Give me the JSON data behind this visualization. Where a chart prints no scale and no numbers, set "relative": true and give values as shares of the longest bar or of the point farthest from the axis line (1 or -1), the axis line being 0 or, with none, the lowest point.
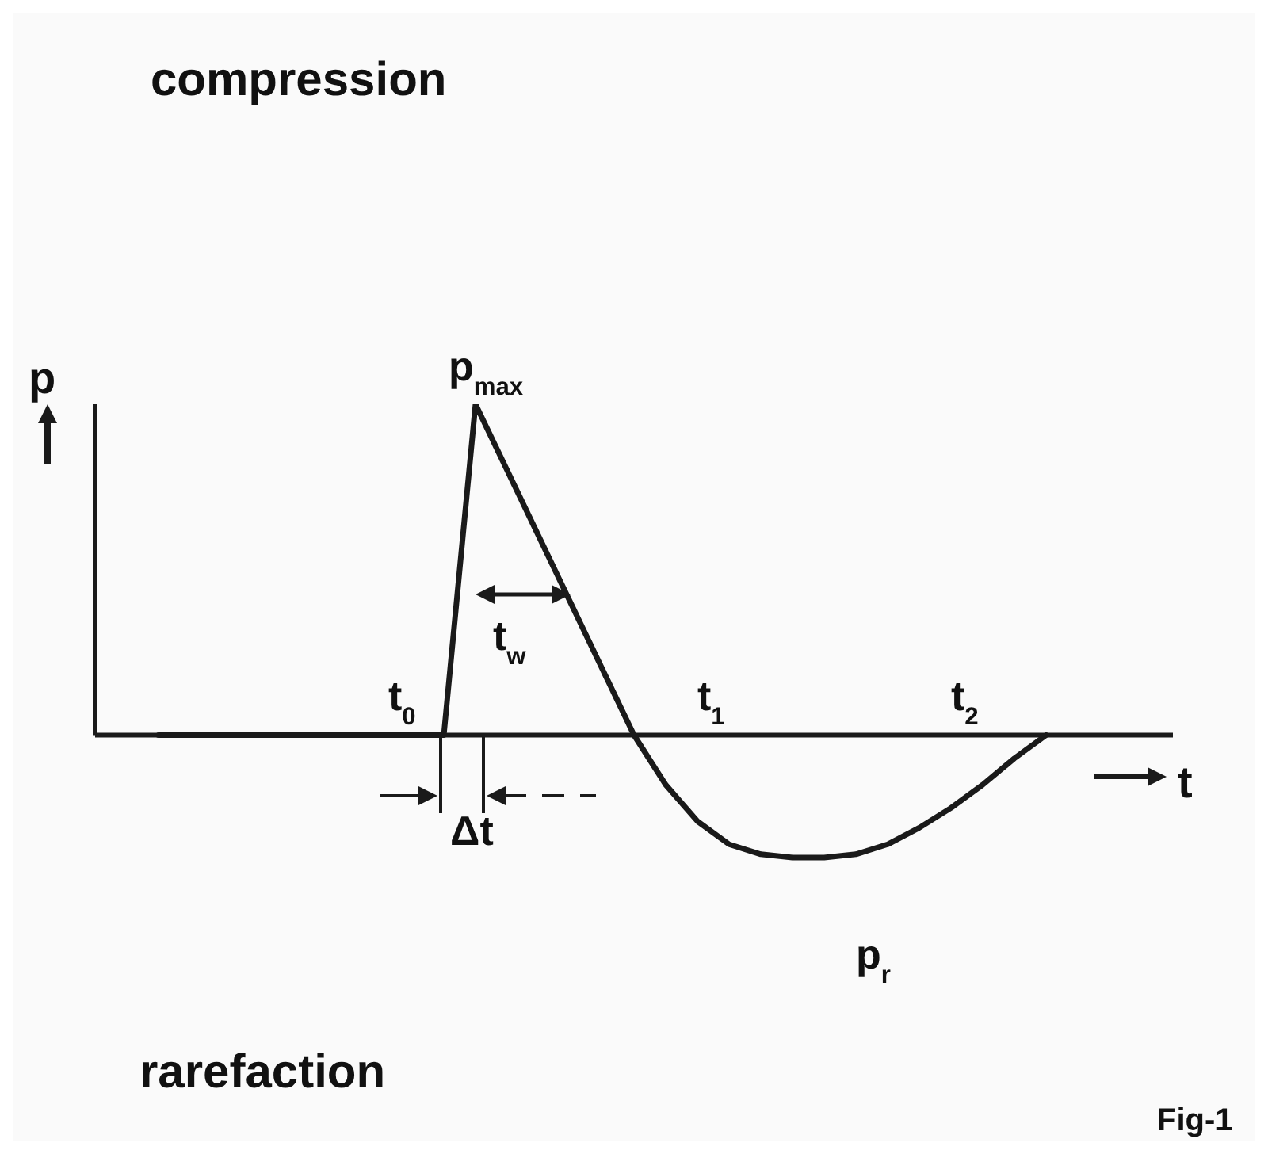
{
  "chart_data": {
    "type": "line",
    "relative": true,
    "xlabel": "t",
    "ylabel": "p",
    "marker": "none",
    "line_style": "solid",
    "categories": [
      null,
      null,
      null,
      null,
      null,
      null,
      null,
      null,
      null,
      null,
      null,
      null,
      null,
      null,
      null,
      null,
      null,
      null,
      null,
      null,
      null,
      null,
      null,
      null,
      null,
      null,
      null,
      null,
      null,
      null,
      null,
      null,
      null,
      null,
      null
    ],
    "series": [
      {
        "color": "#1a1a1a",
        "values": [
          null,
          null,
          0,
          0,
          0,
          0,
          0,
          0,
          0,
          0,
          0,
          0,
          1,
          0.8,
          0.6,
          0.4,
          0.2,
          0,
          -0.15,
          -0.26,
          -0.33,
          -0.36,
          -0.37,
          -0.37,
          -0.36,
          -0.33,
          -0.28,
          -0.22,
          -0.15,
          -0.07,
          0,
          null,
          null,
          null,
          null
        ]
      }
    ],
    "annotations": [
      "compression",
      "rarefaction",
      "Fig-1",
      "p$_{max}$",
      "t$_{0}$",
      "t$_{w}$",
      "t$_{1}$",
      "t$_{2}$",
      "Δt",
      "p$_{r}$"
    ]
  }
}
